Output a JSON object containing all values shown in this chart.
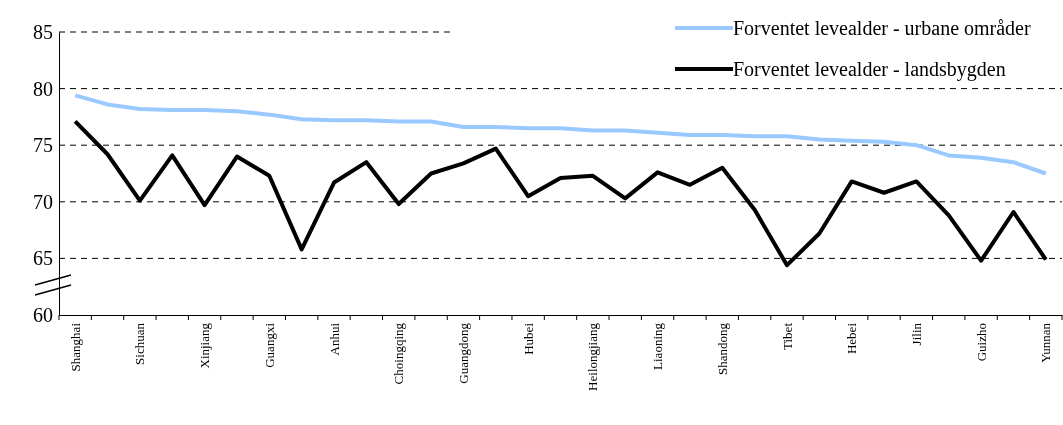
{
  "chart_data": {
    "type": "line",
    "categories": [
      "Shanghai",
      null,
      "Sichuan",
      null,
      "Xinjiang",
      null,
      "Guangxi",
      null,
      "Anhui",
      null,
      "Choingqing",
      null,
      "Guangdong",
      null,
      "Hubei",
      null,
      "Heilongjiang",
      null,
      "Liaoning",
      null,
      "Shandong",
      null,
      "Tibet",
      null,
      "Hebei",
      null,
      "Jilin",
      null,
      "Guizho",
      null,
      "Yunnan"
    ],
    "series": [
      {
        "name": "Forventet levealder - urbane områder",
        "color": "#99c9ff",
        "values": [
          79.4,
          78.6,
          78.2,
          78.1,
          78.1,
          78.0,
          77.7,
          77.3,
          77.2,
          77.2,
          77.1,
          77.1,
          76.6,
          76.6,
          76.5,
          76.5,
          76.3,
          76.3,
          76.1,
          75.9,
          75.9,
          75.8,
          75.8,
          75.5,
          75.4,
          75.3,
          75.0,
          74.1,
          73.9,
          73.5,
          72.5
        ]
      },
      {
        "name": "Forventet levealder - landsbygden",
        "color": "#000000",
        "values": [
          77.1,
          74.2,
          70.1,
          74.1,
          69.7,
          74.0,
          72.3,
          65.8,
          71.7,
          73.5,
          69.8,
          72.5,
          73.4,
          74.7,
          70.5,
          72.1,
          72.3,
          70.3,
          72.6,
          71.5,
          73.0,
          69.3,
          64.4,
          67.2,
          71.8,
          70.8,
          71.8,
          68.8,
          64.8,
          69.1,
          64.9
        ]
      }
    ],
    "ylim": [
      60,
      85
    ],
    "yticks": [
      60,
      65,
      70,
      75,
      80,
      85
    ],
    "grid": "y",
    "legend": "top right",
    "line_style": "solid",
    "marker": "none"
  }
}
